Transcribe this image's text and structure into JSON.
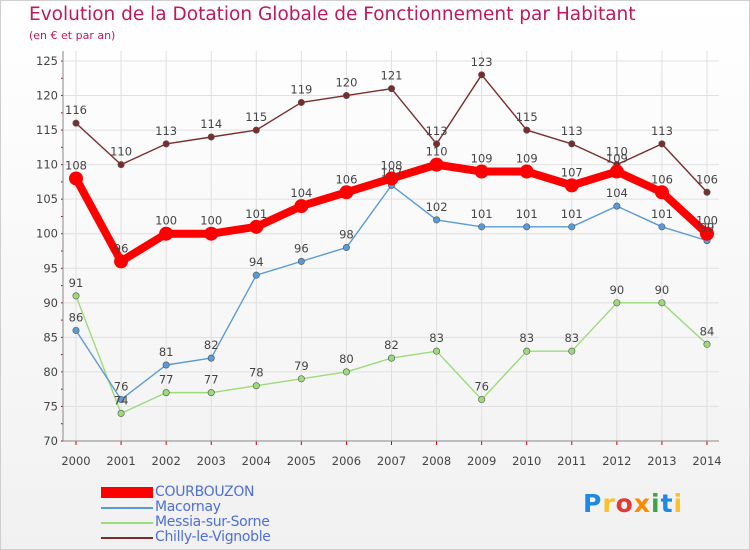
{
  "header": {
    "title": "Evolution de la Dotation Globale de Fonctionnement par Habitant",
    "subtitle": "(en € et par an)"
  },
  "colors": {
    "title": "#c2185b",
    "grid": "#e0e0e0",
    "axis": "#888888",
    "tick": "#cc0000",
    "legend_text": "#4f6fd8"
  },
  "logo": {
    "letters": [
      "P",
      "r",
      "o",
      "x",
      "i",
      "t",
      "i"
    ],
    "colors": [
      "#1e88e5",
      "#fbc02d",
      "#e53935",
      "#fb8c00",
      "#43a047",
      "#1e88e5",
      "#fbc02d"
    ]
  },
  "chart_data": {
    "type": "line",
    "x": [
      "2000",
      "2001",
      "2002",
      "2003",
      "2004",
      "2005",
      "2006",
      "2007",
      "2008",
      "2009",
      "2010",
      "2011",
      "2012",
      "2013",
      "2014"
    ],
    "ylim": [
      70,
      125
    ],
    "yticks": [
      70,
      75,
      80,
      85,
      90,
      95,
      100,
      105,
      110,
      115,
      120,
      125
    ],
    "grid": true,
    "legend_position": "bottom-left",
    "series": [
      {
        "name": "COURBOUZON",
        "color": "#ff0000",
        "values": [
          108,
          96,
          100,
          100,
          101,
          104,
          106,
          108,
          110,
          109,
          109,
          107,
          109,
          106,
          100
        ]
      },
      {
        "name": "Macornay",
        "color": "#5b9bd5",
        "values": [
          86,
          76,
          81,
          82,
          94,
          96,
          98,
          107,
          102,
          101,
          101,
          101,
          104,
          101,
          99
        ]
      },
      {
        "name": "Messia-sur-Sorne",
        "color": "#9bdb7a",
        "values": [
          91,
          74,
          77,
          77,
          78,
          79,
          80,
          82,
          83,
          76,
          83,
          83,
          90,
          90,
          84
        ]
      },
      {
        "name": "Chilly-le-Vignoble",
        "color": "#7b2d2d",
        "values": [
          116,
          110,
          113,
          114,
          115,
          119,
          120,
          121,
          113,
          123,
          115,
          113,
          110,
          113,
          106
        ]
      }
    ]
  }
}
